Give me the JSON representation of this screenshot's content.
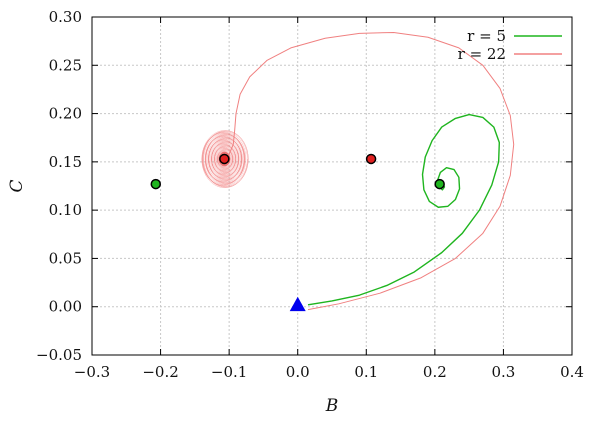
{
  "chart_data": {
    "type": "line",
    "xlabel": "B",
    "ylabel": "C",
    "xlim": [
      -0.3,
      0.4
    ],
    "ylim": [
      -0.05,
      0.3
    ],
    "xticks": [
      "−0.3",
      "−0.2",
      "−0.1",
      "0.0",
      "0.1",
      "0.2",
      "0.3",
      "0.4"
    ],
    "yticks": [
      "−0.05",
      "0.00",
      "0.05",
      "0.10",
      "0.15",
      "0.20",
      "0.25",
      "0.30"
    ],
    "grid": true,
    "legend_position": "top-right",
    "series": [
      {
        "name": "r = 5",
        "legend_text": "r = 5",
        "color": "#1fb51f",
        "points": [
          [
            0.015,
            0.002
          ],
          [
            0.05,
            0.006
          ],
          [
            0.09,
            0.012
          ],
          [
            0.13,
            0.022
          ],
          [
            0.17,
            0.036
          ],
          [
            0.21,
            0.056
          ],
          [
            0.24,
            0.076
          ],
          [
            0.265,
            0.1
          ],
          [
            0.283,
            0.126
          ],
          [
            0.293,
            0.15
          ],
          [
            0.294,
            0.17
          ],
          [
            0.286,
            0.186
          ],
          [
            0.27,
            0.196
          ],
          [
            0.25,
            0.199
          ],
          [
            0.23,
            0.195
          ],
          [
            0.21,
            0.186
          ],
          [
            0.196,
            0.172
          ],
          [
            0.186,
            0.155
          ],
          [
            0.182,
            0.137
          ],
          [
            0.184,
            0.121
          ],
          [
            0.192,
            0.109
          ],
          [
            0.205,
            0.103
          ],
          [
            0.219,
            0.104
          ],
          [
            0.23,
            0.111
          ],
          [
            0.236,
            0.122
          ],
          [
            0.235,
            0.134
          ],
          [
            0.228,
            0.142
          ],
          [
            0.217,
            0.144
          ],
          [
            0.208,
            0.139
          ],
          [
            0.204,
            0.131
          ],
          [
            0.206,
            0.124
          ],
          [
            0.211,
            0.121
          ],
          [
            0.214,
            0.124
          ],
          [
            0.212,
            0.128
          ],
          [
            0.209,
            0.127
          ]
        ]
      },
      {
        "name": "r = 22",
        "legend_text": "r = 22",
        "color": "#f08080",
        "points": [
          [
            0.015,
            -0.003
          ],
          [
            0.06,
            0.003
          ],
          [
            0.12,
            0.014
          ],
          [
            0.18,
            0.03
          ],
          [
            0.23,
            0.05
          ],
          [
            0.27,
            0.076
          ],
          [
            0.295,
            0.104
          ],
          [
            0.31,
            0.136
          ],
          [
            0.315,
            0.168
          ],
          [
            0.31,
            0.198
          ],
          [
            0.295,
            0.226
          ],
          [
            0.27,
            0.25
          ],
          [
            0.235,
            0.268
          ],
          [
            0.19,
            0.279
          ],
          [
            0.14,
            0.284
          ],
          [
            0.09,
            0.283
          ],
          [
            0.04,
            0.278
          ],
          [
            -0.01,
            0.268
          ],
          [
            -0.045,
            0.255
          ],
          [
            -0.07,
            0.238
          ],
          [
            -0.084,
            0.22
          ],
          [
            -0.09,
            0.2
          ],
          [
            -0.092,
            0.182
          ],
          [
            -0.094,
            0.168
          ],
          [
            -0.1,
            0.158
          ],
          [
            -0.107,
            0.153
          ]
        ],
        "spiral_center": [
          -0.107,
          0.153
        ],
        "spiral_radius": [
          0.034,
          0.03
        ]
      }
    ],
    "markers": [
      {
        "shape": "circle",
        "fill": "#1fb51f",
        "x": -0.207,
        "y": 0.127
      },
      {
        "shape": "circle",
        "fill": "#e02020",
        "x": -0.107,
        "y": 0.153
      },
      {
        "shape": "circle",
        "fill": "#e02020",
        "x": 0.107,
        "y": 0.153
      },
      {
        "shape": "circle",
        "fill": "#1fb51f",
        "x": 0.207,
        "y": 0.127
      },
      {
        "shape": "triangle",
        "fill": "#0000ee",
        "x": 0.0,
        "y": 0.002
      }
    ]
  }
}
